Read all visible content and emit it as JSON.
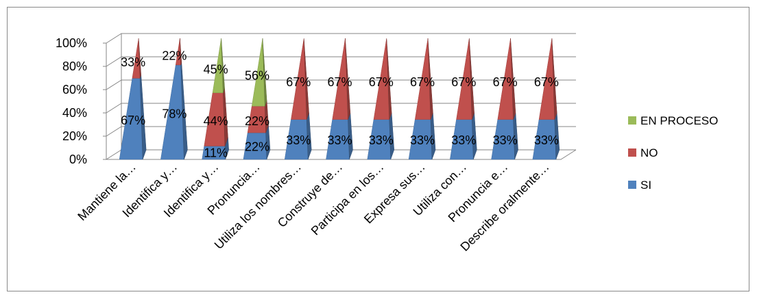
{
  "chart_data": {
    "type": "bar",
    "style": "3d-stacked-pyramid",
    "categories": [
      "Mantiene la…",
      "Identifica y…",
      "Identifica y…",
      "Pronuncia…",
      "Utiliza los nombres…",
      "Construye de…",
      "Participa en los…",
      "Expresa sus…",
      "Utiliza con…",
      "Pronuncia e…",
      "Describe oralmente…"
    ],
    "series": [
      {
        "name": "SI",
        "color": "#4F81BD",
        "values": [
          67,
          78,
          11,
          22,
          33,
          33,
          33,
          33,
          33,
          33,
          33
        ],
        "labels": [
          "67%",
          "78%",
          "11%",
          "22%",
          "33%",
          "33%",
          "33%",
          "33%",
          "33%",
          "33%",
          "33%"
        ]
      },
      {
        "name": "NO",
        "color": "#C0504D",
        "values": [
          33,
          22,
          44,
          22,
          67,
          67,
          67,
          67,
          67,
          67,
          67
        ],
        "labels": [
          "33%",
          "22%",
          "44%",
          "22%",
          "67%",
          "67%",
          "67%",
          "67%",
          "67%",
          "67%",
          "67%"
        ]
      },
      {
        "name": "EN PROCESO",
        "color": "#9BBB59",
        "values": [
          0,
          0,
          45,
          56,
          0,
          0,
          0,
          0,
          0,
          0,
          0
        ],
        "labels": [
          "",
          "",
          "45%",
          "56%",
          "",
          "",
          "",
          "",
          "",
          "",
          ""
        ]
      }
    ],
    "yticks": [
      "0%",
      "20%",
      "40%",
      "60%",
      "80%",
      "100%"
    ],
    "ylim": [
      0,
      100
    ],
    "legend": {
      "position": "right",
      "items": [
        "EN PROCESO",
        "NO",
        "SI"
      ]
    },
    "grid": true
  }
}
